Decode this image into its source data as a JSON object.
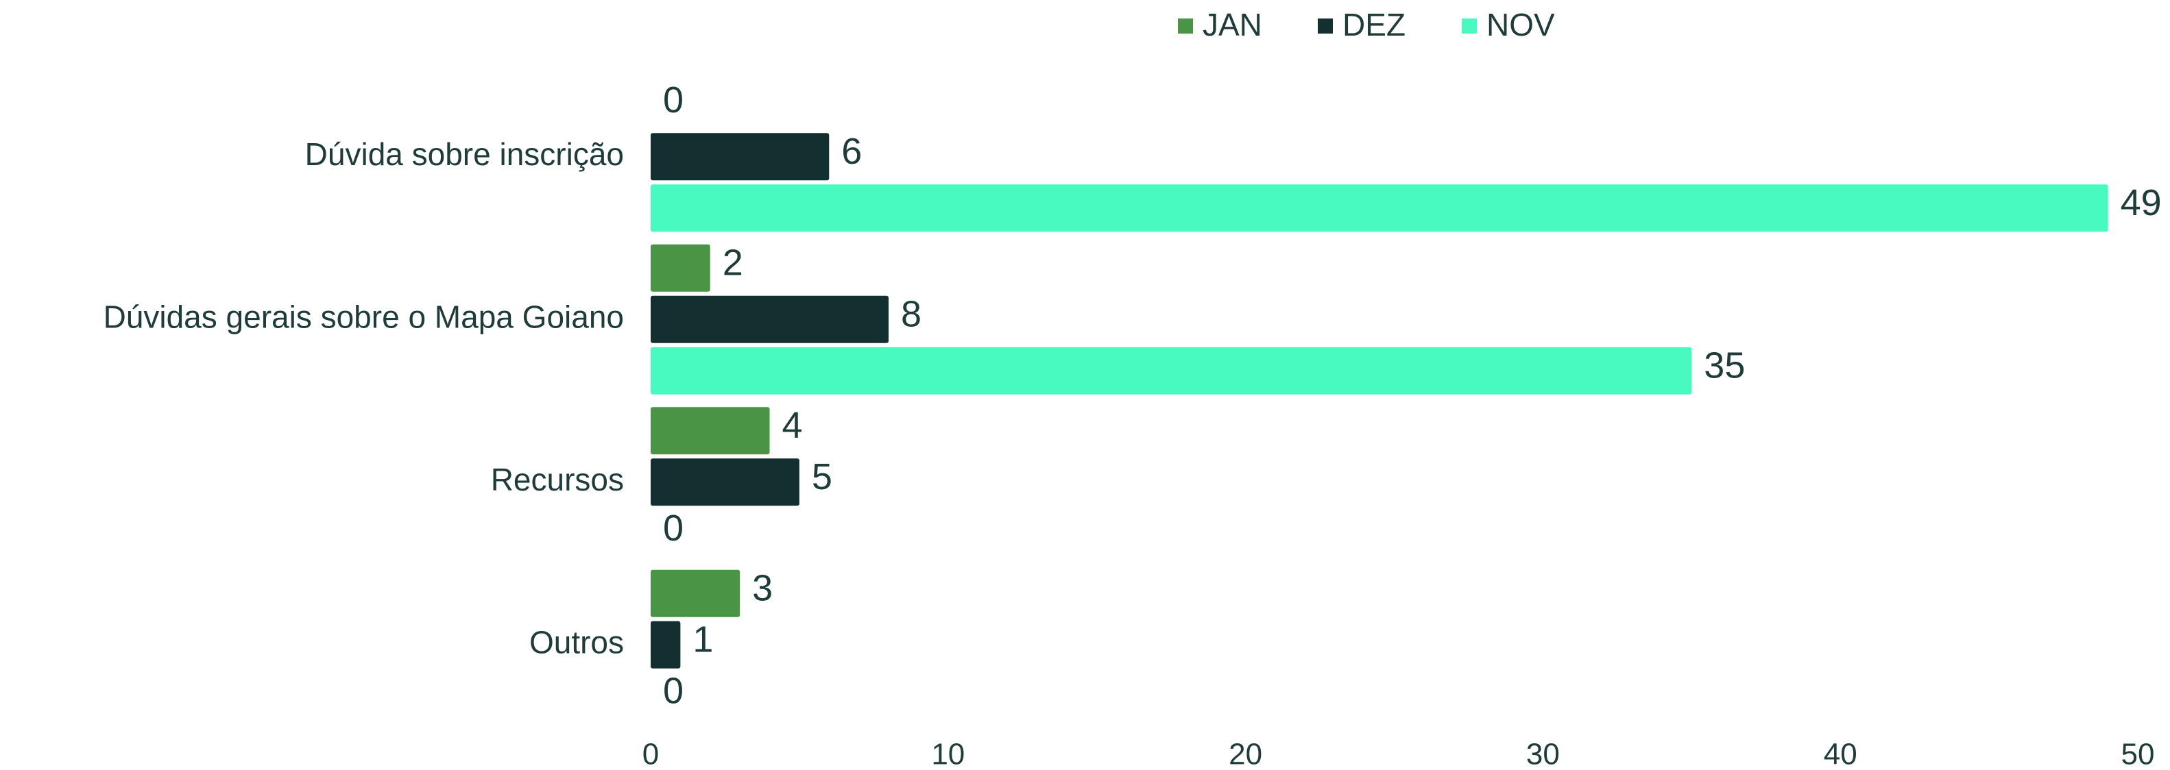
{
  "chart_data": {
    "type": "bar",
    "orientation": "horizontal",
    "categories": [
      "Dúvida sobre inscrição",
      "Dúvidas gerais sobre o Mapa Goiano",
      "Recursos",
      "Outros"
    ],
    "series": [
      {
        "name": "JAN",
        "color": "#4a9446",
        "values": [
          0,
          2,
          4,
          3
        ]
      },
      {
        "name": "DEZ",
        "color": "#142f30",
        "values": [
          6,
          8,
          5,
          1
        ]
      },
      {
        "name": "NOV",
        "color": "#48f9c0",
        "values": [
          49,
          35,
          0,
          0
        ]
      }
    ],
    "xlim": [
      0,
      50
    ],
    "xticks": [
      0,
      10,
      20,
      30,
      40,
      50
    ],
    "grid": false,
    "legend": "top"
  }
}
